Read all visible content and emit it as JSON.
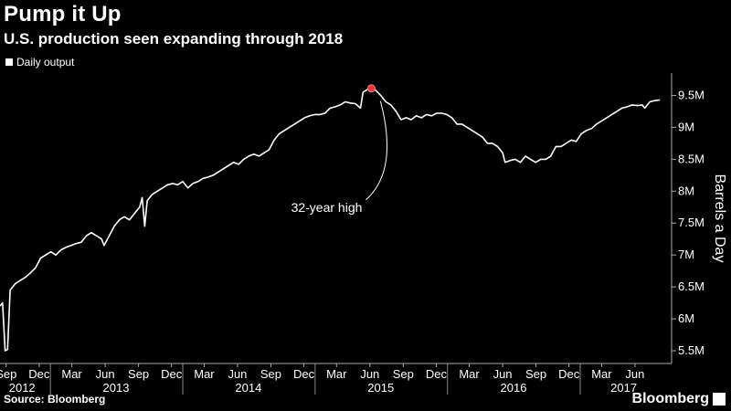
{
  "header": {
    "title": "Pump it Up",
    "subtitle": "U.S. production seen expanding through 2018"
  },
  "footer": {
    "source": "Source: Bloomberg",
    "logo_text": "Bloomberg"
  },
  "colors": {
    "background": "#000000",
    "line": "#ffffff",
    "highlight": "#e8383d",
    "grid": "#666666"
  },
  "chart_data": {
    "type": "line",
    "title": "Pump it Up",
    "subtitle": "U.S. production seen expanding through 2018",
    "ylabel": "Barrels a Day",
    "y_axis_side": "right",
    "ylim": [
      5.3,
      9.85
    ],
    "y_ticks": [
      {
        "value": 5.5,
        "label": "5.5M"
      },
      {
        "value": 6.0,
        "label": "6M"
      },
      {
        "value": 6.5,
        "label": "6.5M"
      },
      {
        "value": 7.0,
        "label": "7M"
      },
      {
        "value": 7.5,
        "label": "7.5M"
      },
      {
        "value": 8.0,
        "label": "8M"
      },
      {
        "value": 8.5,
        "label": "8.5M"
      },
      {
        "value": 9.0,
        "label": "9M"
      },
      {
        "value": 9.5,
        "label": "9.5M"
      }
    ],
    "xlim": [
      "2012-08-15",
      "2017-09-10"
    ],
    "x_month_ticks": [
      {
        "date": "2012-09-01",
        "label": "Sep"
      },
      {
        "date": "2012-12-01",
        "label": "Dec"
      },
      {
        "date": "2013-03-01",
        "label": "Mar"
      },
      {
        "date": "2013-06-01",
        "label": "Jun"
      },
      {
        "date": "2013-09-01",
        "label": "Sep"
      },
      {
        "date": "2013-12-01",
        "label": "Dec"
      },
      {
        "date": "2014-03-01",
        "label": "Mar"
      },
      {
        "date": "2014-06-01",
        "label": "Jun"
      },
      {
        "date": "2014-09-01",
        "label": "Sep"
      },
      {
        "date": "2014-12-01",
        "label": "Dec"
      },
      {
        "date": "2015-03-01",
        "label": "Mar"
      },
      {
        "date": "2015-06-01",
        "label": "Jun"
      },
      {
        "date": "2015-09-01",
        "label": "Sep"
      },
      {
        "date": "2015-12-01",
        "label": "Dec"
      },
      {
        "date": "2016-03-01",
        "label": "Mar"
      },
      {
        "date": "2016-06-01",
        "label": "Jun"
      },
      {
        "date": "2016-09-01",
        "label": "Sep"
      },
      {
        "date": "2016-12-01",
        "label": "Dec"
      },
      {
        "date": "2017-03-01",
        "label": "Mar"
      },
      {
        "date": "2017-06-01",
        "label": "Jun"
      }
    ],
    "x_year_labels": [
      {
        "center": "2012-10-15",
        "label": "2012"
      },
      {
        "center": "2013-07-01",
        "label": "2013"
      },
      {
        "center": "2014-07-01",
        "label": "2014"
      },
      {
        "center": "2015-07-01",
        "label": "2015"
      },
      {
        "center": "2016-07-01",
        "label": "2016"
      },
      {
        "center": "2017-05-01",
        "label": "2017"
      }
    ],
    "x_year_boundaries": [
      "2013-01-01",
      "2014-01-01",
      "2015-01-01",
      "2016-01-01",
      "2017-01-01"
    ],
    "legend": {
      "position": "top-left"
    },
    "series": [
      {
        "name": "Daily output",
        "color": "#ffffff",
        "points": [
          [
            "2012-08-15",
            6.2
          ],
          [
            "2012-08-22",
            6.25
          ],
          [
            "2012-08-29",
            5.5
          ],
          [
            "2012-09-05",
            5.52
          ],
          [
            "2012-09-12",
            6.45
          ],
          [
            "2012-09-19",
            6.5
          ],
          [
            "2012-09-26",
            6.55
          ],
          [
            "2012-10-10",
            6.6
          ],
          [
            "2012-10-24",
            6.65
          ],
          [
            "2012-11-07",
            6.72
          ],
          [
            "2012-11-21",
            6.8
          ],
          [
            "2012-12-05",
            6.95
          ],
          [
            "2012-12-19",
            7.0
          ],
          [
            "2013-01-02",
            7.05
          ],
          [
            "2013-01-16",
            7.0
          ],
          [
            "2013-01-30",
            7.08
          ],
          [
            "2013-02-13",
            7.12
          ],
          [
            "2013-02-27",
            7.15
          ],
          [
            "2013-03-13",
            7.18
          ],
          [
            "2013-03-27",
            7.2
          ],
          [
            "2013-04-10",
            7.3
          ],
          [
            "2013-04-24",
            7.35
          ],
          [
            "2013-05-08",
            7.3
          ],
          [
            "2013-05-22",
            7.25
          ],
          [
            "2013-05-29",
            7.15
          ],
          [
            "2013-06-12",
            7.3
          ],
          [
            "2013-06-26",
            7.45
          ],
          [
            "2013-07-10",
            7.55
          ],
          [
            "2013-07-24",
            7.6
          ],
          [
            "2013-08-07",
            7.55
          ],
          [
            "2013-08-21",
            7.65
          ],
          [
            "2013-09-04",
            7.75
          ],
          [
            "2013-09-11",
            7.9
          ],
          [
            "2013-09-18",
            7.45
          ],
          [
            "2013-09-25",
            7.85
          ],
          [
            "2013-10-09",
            7.95
          ],
          [
            "2013-10-23",
            8.0
          ],
          [
            "2013-11-06",
            8.05
          ],
          [
            "2013-11-20",
            8.1
          ],
          [
            "2013-12-04",
            8.12
          ],
          [
            "2013-12-18",
            8.1
          ],
          [
            "2014-01-01",
            8.15
          ],
          [
            "2014-01-15",
            8.05
          ],
          [
            "2014-01-29",
            8.12
          ],
          [
            "2014-02-12",
            8.15
          ],
          [
            "2014-02-26",
            8.2
          ],
          [
            "2014-03-12",
            8.22
          ],
          [
            "2014-03-26",
            8.25
          ],
          [
            "2014-04-09",
            8.3
          ],
          [
            "2014-04-23",
            8.35
          ],
          [
            "2014-05-07",
            8.4
          ],
          [
            "2014-05-21",
            8.45
          ],
          [
            "2014-06-04",
            8.42
          ],
          [
            "2014-06-18",
            8.5
          ],
          [
            "2014-07-02",
            8.55
          ],
          [
            "2014-07-16",
            8.58
          ],
          [
            "2014-07-30",
            8.55
          ],
          [
            "2014-08-13",
            8.6
          ],
          [
            "2014-08-27",
            8.65
          ],
          [
            "2014-09-10",
            8.8
          ],
          [
            "2014-09-24",
            8.9
          ],
          [
            "2014-10-08",
            8.95
          ],
          [
            "2014-10-22",
            9.0
          ],
          [
            "2014-11-05",
            9.05
          ],
          [
            "2014-11-19",
            9.1
          ],
          [
            "2014-12-03",
            9.15
          ],
          [
            "2014-12-17",
            9.18
          ],
          [
            "2014-12-31",
            9.2
          ],
          [
            "2015-01-14",
            9.2
          ],
          [
            "2015-01-28",
            9.22
          ],
          [
            "2015-02-11",
            9.3
          ],
          [
            "2015-02-25",
            9.32
          ],
          [
            "2015-03-11",
            9.35
          ],
          [
            "2015-03-25",
            9.4
          ],
          [
            "2015-04-08",
            9.38
          ],
          [
            "2015-04-22",
            9.37
          ],
          [
            "2015-05-06",
            9.3
          ],
          [
            "2015-05-13",
            9.55
          ],
          [
            "2015-05-27",
            9.6
          ],
          [
            "2015-06-05",
            9.61
          ],
          [
            "2015-06-17",
            9.58
          ],
          [
            "2015-07-01",
            9.5
          ],
          [
            "2015-07-15",
            9.4
          ],
          [
            "2015-07-29",
            9.35
          ],
          [
            "2015-08-12",
            9.25
          ],
          [
            "2015-08-26",
            9.12
          ],
          [
            "2015-09-09",
            9.15
          ],
          [
            "2015-09-23",
            9.12
          ],
          [
            "2015-10-07",
            9.18
          ],
          [
            "2015-10-21",
            9.15
          ],
          [
            "2015-11-04",
            9.2
          ],
          [
            "2015-11-18",
            9.18
          ],
          [
            "2015-12-02",
            9.22
          ],
          [
            "2015-12-16",
            9.22
          ],
          [
            "2015-12-30",
            9.2
          ],
          [
            "2016-01-13",
            9.15
          ],
          [
            "2016-01-27",
            9.05
          ],
          [
            "2016-02-10",
            9.05
          ],
          [
            "2016-02-24",
            9.0
          ],
          [
            "2016-03-09",
            8.95
          ],
          [
            "2016-03-23",
            8.9
          ],
          [
            "2016-04-06",
            8.85
          ],
          [
            "2016-04-20",
            8.75
          ],
          [
            "2016-05-04",
            8.75
          ],
          [
            "2016-05-18",
            8.7
          ],
          [
            "2016-06-01",
            8.6
          ],
          [
            "2016-06-08",
            8.45
          ],
          [
            "2016-06-22",
            8.48
          ],
          [
            "2016-07-06",
            8.5
          ],
          [
            "2016-07-20",
            8.45
          ],
          [
            "2016-08-03",
            8.55
          ],
          [
            "2016-08-17",
            8.5
          ],
          [
            "2016-08-31",
            8.45
          ],
          [
            "2016-09-14",
            8.5
          ],
          [
            "2016-09-28",
            8.5
          ],
          [
            "2016-10-12",
            8.55
          ],
          [
            "2016-10-26",
            8.7
          ],
          [
            "2016-11-09",
            8.7
          ],
          [
            "2016-11-23",
            8.75
          ],
          [
            "2016-12-07",
            8.8
          ],
          [
            "2016-12-21",
            8.78
          ],
          [
            "2017-01-04",
            8.9
          ],
          [
            "2017-01-18",
            8.95
          ],
          [
            "2017-02-01",
            8.98
          ],
          [
            "2017-02-15",
            9.05
          ],
          [
            "2017-03-01",
            9.1
          ],
          [
            "2017-03-15",
            9.15
          ],
          [
            "2017-03-29",
            9.2
          ],
          [
            "2017-04-12",
            9.25
          ],
          [
            "2017-04-26",
            9.3
          ],
          [
            "2017-05-10",
            9.32
          ],
          [
            "2017-05-24",
            9.35
          ],
          [
            "2017-06-07",
            9.34
          ],
          [
            "2017-06-21",
            9.35
          ],
          [
            "2017-06-28",
            9.3
          ],
          [
            "2017-07-12",
            9.4
          ],
          [
            "2017-07-26",
            9.42
          ],
          [
            "2017-08-09",
            9.43
          ]
        ]
      }
    ],
    "annotations": [
      {
        "text": "32-year high",
        "date": "2015-06-05",
        "value": 9.61
      }
    ]
  }
}
